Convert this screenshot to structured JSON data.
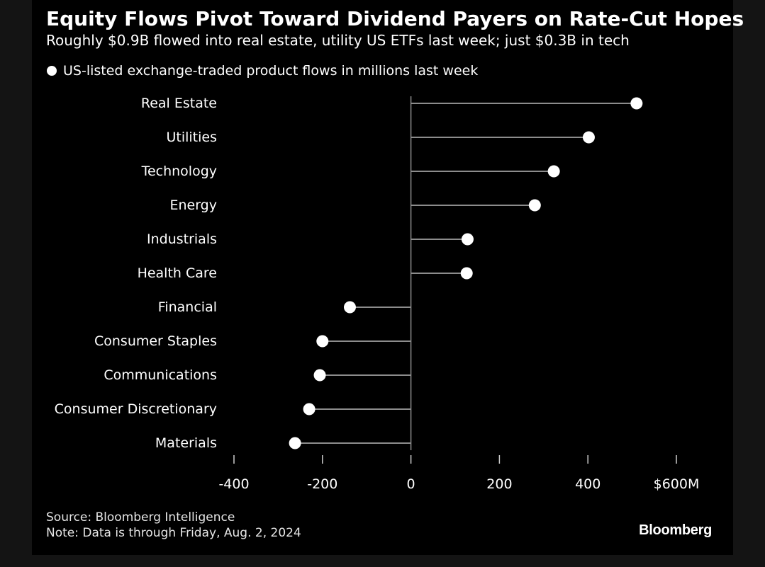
{
  "chart_data": {
    "type": "dot",
    "title": "Equity Flows Pivot Toward Dividend Payers on Rate-Cut Hopes",
    "subtitle": "Roughly $0.9B flowed into real estate, utility US ETFs last week; just $0.3B in tech",
    "legend": [
      "US-listed exchange-traded product flows in millions last week"
    ],
    "categories": [
      "Real Estate",
      "Utilities",
      "Technology",
      "Energy",
      "Industrials",
      "Health Care",
      "Financial",
      "Consumer Staples",
      "Communications",
      "Consumer Discretionary",
      "Materials"
    ],
    "series": [
      {
        "name": "US-listed exchange-traded product flows in millions last week",
        "values": [
          510,
          402,
          323,
          280,
          128,
          126,
          -138,
          -200,
          -206,
          -230,
          -262
        ]
      }
    ],
    "xlim": [
      -400,
      600
    ],
    "xticks": [
      -400,
      -200,
      0,
      200,
      400,
      600
    ],
    "xtick_labels": [
      "-400",
      "-200",
      "0",
      "200",
      "400",
      "$600M"
    ],
    "dot_color": "#ffffff",
    "stem_color": "#8c8c8c",
    "background": "#000000"
  },
  "footer": {
    "source": "Source: Bloomberg Intelligence",
    "note": "Note: Data is through Friday, Aug. 2, 2024",
    "brand": "Bloomberg"
  }
}
